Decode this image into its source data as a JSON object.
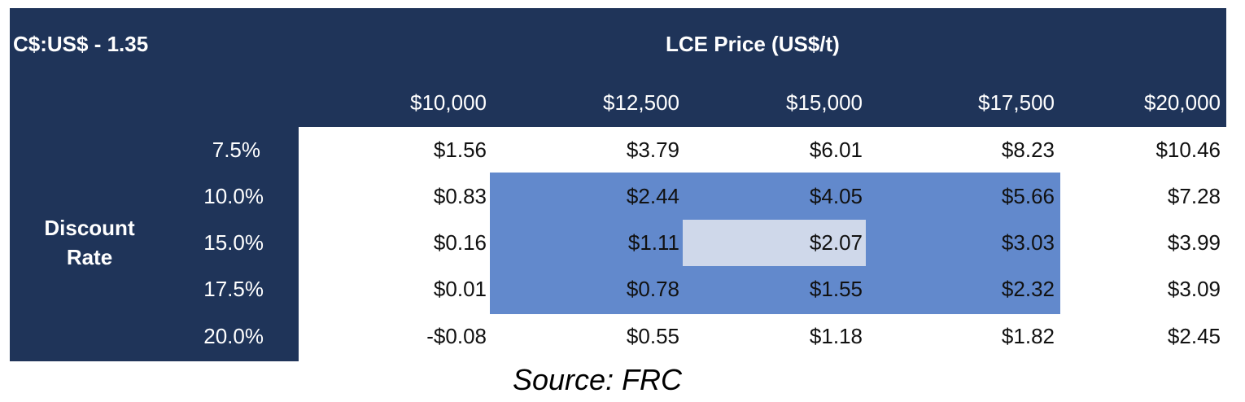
{
  "header": {
    "fx_label": "C$:US$ - 1.35",
    "price_title": "LCE Price (US$/t)"
  },
  "columns": [
    "$10,000",
    "$12,500",
    "$15,000",
    "$17,500",
    "$20,000"
  ],
  "row_group_label": "Discount Rate",
  "rows": [
    {
      "rate": "7.5%",
      "values": [
        "$1.56",
        "$3.79",
        "$6.01",
        "$8.23",
        "$10.46"
      ]
    },
    {
      "rate": "10.0%",
      "values": [
        "$0.83",
        "$2.44",
        "$4.05",
        "$5.66",
        "$7.28"
      ]
    },
    {
      "rate": "15.0%",
      "values": [
        "$0.16",
        "$1.11",
        "$2.07",
        "$3.03",
        "$3.99"
      ]
    },
    {
      "rate": "17.5%",
      "values": [
        "$0.01",
        "$0.78",
        "$1.55",
        "$2.32",
        "$3.09"
      ]
    },
    {
      "rate": "20.0%",
      "values": [
        "-$0.08",
        "$0.55",
        "$1.18",
        "$1.82",
        "$2.45"
      ]
    }
  ],
  "highlight_colors": {
    "header_bg": "#1f3459",
    "range_bg": "#6289cc",
    "base_case_bg": "#cfd8ea"
  },
  "source": "Source: FRC"
}
